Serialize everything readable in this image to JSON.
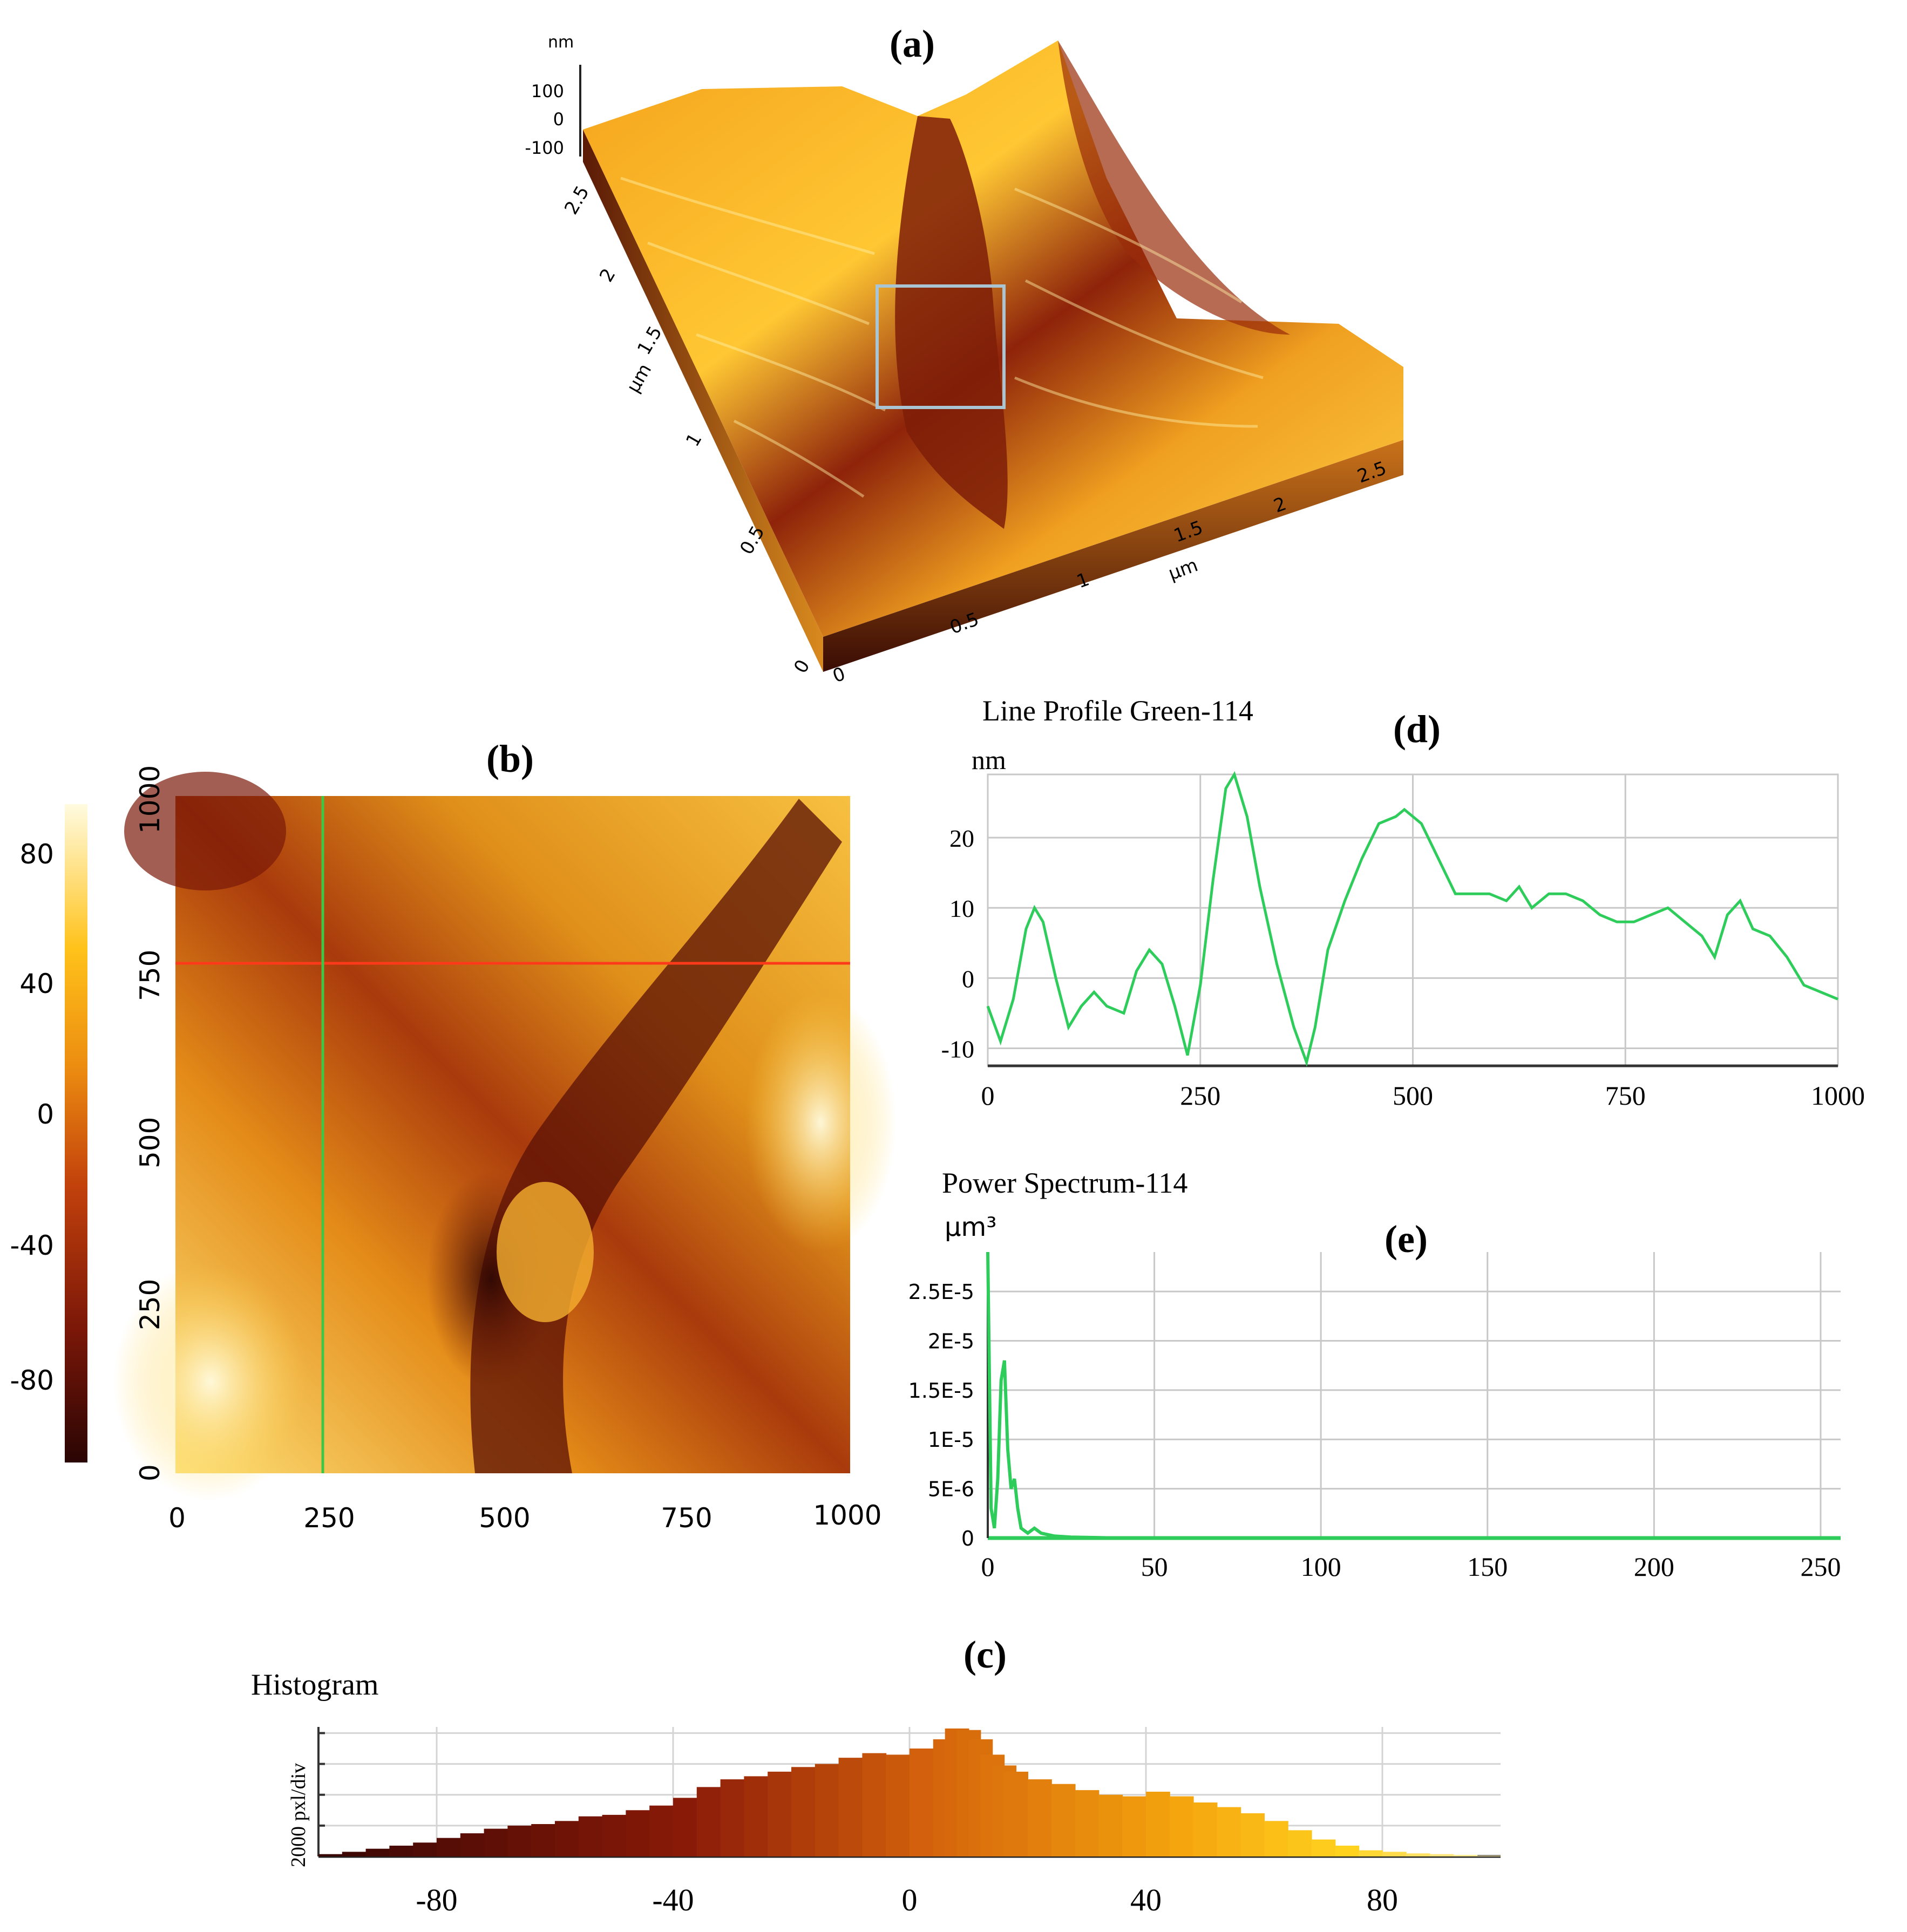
{
  "colors": {
    "bg": "#ffffff",
    "line_green": "#2ecc5a",
    "grid": "#c8c8c8",
    "red_line": "#ff3a1a",
    "green_cursor": "#3cc846",
    "box": "#a9c4d2",
    "afm_dark": "#3a0a04",
    "afm_mid": "#c2410c",
    "afm_light": "#ffcc22",
    "afm_pale": "#fffbe0"
  },
  "panel_a": {
    "label": "(a)",
    "z_unit": "nm",
    "z_ticks": [
      "100",
      "0",
      "-100"
    ],
    "y_unit": "µm",
    "y_ticks": [
      "0",
      "0.5",
      "1",
      "1.5",
      "2",
      "2.5"
    ],
    "x_unit": "µm",
    "x_ticks": [
      "0",
      "0.5",
      "1",
      "1.5",
      "2",
      "2.5"
    ]
  },
  "panel_b": {
    "label": "(b)",
    "colorbar_ticks": [
      "80",
      "40",
      "0",
      "-40",
      "-80"
    ],
    "x_ticks": [
      "0",
      "250",
      "500",
      "750",
      "1000"
    ],
    "y_ticks": [
      "0",
      "250",
      "500",
      "750",
      "1000"
    ]
  },
  "chart_data": [
    {
      "id": "line_profile",
      "type": "line",
      "label": "(d)",
      "title": "Line Profile Green-114",
      "ylabel": "nm",
      "xlim": [
        0,
        1000
      ],
      "ylim": [
        -12.5,
        29
      ],
      "x_ticks": [
        "0",
        "250",
        "500",
        "750",
        "1000"
      ],
      "y_ticks": [
        "20",
        "10",
        "0",
        "-10"
      ],
      "series": [
        {
          "name": "Green-114",
          "x": [
            0,
            15,
            30,
            45,
            55,
            65,
            80,
            95,
            110,
            125,
            140,
            160,
            175,
            190,
            205,
            220,
            235,
            250,
            265,
            280,
            290,
            305,
            320,
            340,
            360,
            375,
            385,
            400,
            420,
            440,
            460,
            480,
            490,
            510,
            530,
            550,
            570,
            590,
            610,
            625,
            640,
            660,
            680,
            700,
            720,
            740,
            760,
            780,
            800,
            820,
            840,
            855,
            870,
            885,
            900,
            920,
            940,
            960,
            980,
            1000
          ],
          "y": [
            -4,
            -9,
            -3,
            7,
            10,
            8,
            0,
            -7,
            -4,
            -2,
            -4,
            -5,
            1,
            4,
            2,
            -4,
            -11,
            -1,
            14,
            27,
            29,
            23,
            13,
            2,
            -7,
            -12,
            -7,
            4,
            11,
            17,
            22,
            23,
            24,
            22,
            17,
            12,
            12,
            12,
            11,
            13,
            10,
            12,
            12,
            11,
            9,
            8,
            8,
            9,
            10,
            8,
            6,
            3,
            9,
            11,
            7,
            6,
            3,
            -1,
            -2,
            -3
          ]
        }
      ]
    },
    {
      "id": "power_spectrum",
      "type": "line",
      "label": "(e)",
      "title": "Power Spectrum-114",
      "ylabel": "µm³",
      "xlim": [
        0,
        256
      ],
      "ylim": [
        0,
        2.9e-05
      ],
      "x_ticks": [
        "0",
        "50",
        "100",
        "150",
        "200",
        "250"
      ],
      "y_ticks": [
        "2.5E-5",
        "2E-5",
        "1.5E-5",
        "1E-5",
        "5E-6",
        "0"
      ],
      "series": [
        {
          "name": "spectrum",
          "x": [
            0,
            1,
            2,
            3,
            4,
            5,
            6,
            7,
            8,
            9,
            10,
            12,
            14,
            16,
            20,
            25,
            40,
            80,
            120,
            160,
            200,
            256
          ],
          "y": [
            2.9e-05,
            3e-06,
            1e-06,
            6e-06,
            1.6e-05,
            1.8e-05,
            9e-06,
            5e-06,
            6e-06,
            3e-06,
            1e-06,
            5e-07,
            1e-06,
            5e-07,
            2e-07,
            1e-07,
            0.0,
            0.0,
            0.0,
            0.0,
            0.0,
            0.0
          ]
        }
      ]
    },
    {
      "id": "histogram",
      "type": "bar",
      "label": "(c)",
      "title": "Histogram",
      "ylabel": "2000 pxl/div",
      "xlim": [
        -100,
        100
      ],
      "ylim": [
        0,
        8400
      ],
      "x_ticks": [
        "-80",
        "-40",
        "0",
        "40",
        "80"
      ],
      "x": [
        -98,
        -94,
        -90,
        -86,
        -82,
        -78,
        -74,
        -70,
        -66,
        -62,
        -58,
        -54,
        -50,
        -46,
        -42,
        -38,
        -34,
        -30,
        -26,
        -22,
        -18,
        -14,
        -10,
        -6,
        -2,
        2,
        6,
        8,
        10,
        12,
        14,
        16,
        18,
        22,
        26,
        30,
        34,
        38,
        42,
        46,
        50,
        54,
        58,
        62,
        66,
        70,
        74,
        78,
        82,
        86,
        90,
        94,
        98
      ],
      "values": [
        150,
        300,
        500,
        700,
        900,
        1200,
        1500,
        1800,
        2000,
        2100,
        2300,
        2600,
        2700,
        3000,
        3300,
        3800,
        4500,
        5000,
        5200,
        5500,
        5800,
        6000,
        6400,
        6700,
        6600,
        7000,
        7600,
        8300,
        8200,
        7600,
        6600,
        5900,
        5500,
        5000,
        4700,
        4300,
        4000,
        3900,
        4200,
        3900,
        3500,
        3200,
        2800,
        2300,
        1700,
        1100,
        700,
        400,
        300,
        200,
        150,
        100,
        50
      ]
    }
  ]
}
